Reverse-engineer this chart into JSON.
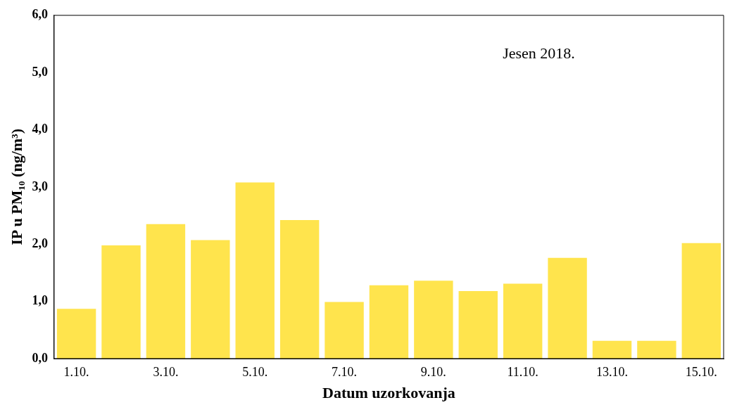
{
  "chart_data": {
    "type": "bar",
    "xlabel": "Datum uzorkovanja",
    "ylabel": "IP u PM₁₀ (ng/m³)",
    "categories": [
      "1.10.",
      null,
      "3.10.",
      null,
      "5.10.",
      null,
      "7.10.",
      null,
      "9.10.",
      null,
      "11.10.",
      null,
      "13.10.",
      null,
      "15.10."
    ],
    "values": [
      0.87,
      1.98,
      2.35,
      2.07,
      3.08,
      2.42,
      0.99,
      1.28,
      1.36,
      1.18,
      1.31,
      1.76,
      0.31,
      0.31,
      2.02
    ],
    "color": "#ffe44d",
    "ylim": [
      0,
      6
    ],
    "yticks": [
      {
        "value": 0,
        "label": "0,0"
      },
      {
        "value": 1,
        "label": "1,0"
      },
      {
        "value": 2,
        "label": "2,0"
      },
      {
        "value": 3,
        "label": "3,0"
      },
      {
        "value": 4,
        "label": "4,0"
      },
      {
        "value": 5,
        "label": "5,0"
      },
      {
        "value": 6,
        "label": "6,0"
      }
    ],
    "grid": false,
    "legend": false,
    "annotations": [
      "Jesen 2018."
    ]
  }
}
